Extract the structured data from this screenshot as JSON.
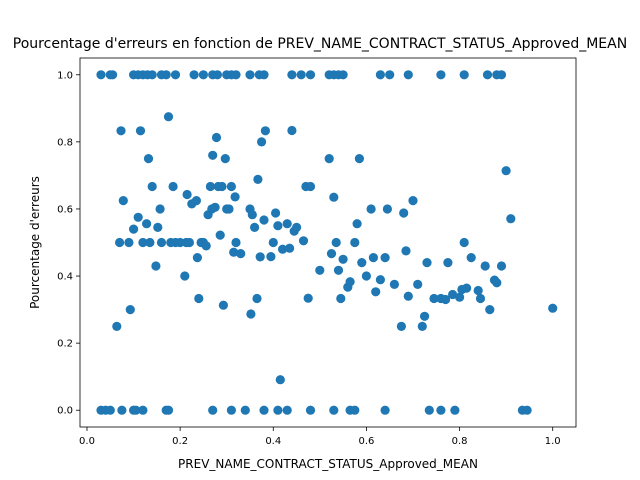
{
  "chart_data": {
    "type": "scatter",
    "title": "Pourcentage d'erreurs en fonction de PREV_NAME_CONTRACT_STATUS_Approved_MEAN",
    "xlabel": "PREV_NAME_CONTRACT_STATUS_Approved_MEAN",
    "ylabel": "Pourcentage d'erreurs",
    "xlim": [
      -0.015,
      1.05
    ],
    "ylim": [
      -0.05,
      1.05
    ],
    "xticks": [
      0.0,
      0.2,
      0.4,
      0.6,
      0.8,
      1.0
    ],
    "xtick_labels": [
      "0.0",
      "0.2",
      "0.4",
      "0.6",
      "0.8",
      "1.0"
    ],
    "yticks": [
      0.0,
      0.2,
      0.4,
      0.6,
      0.8,
      1.0
    ],
    "ytick_labels": [
      "0.0",
      "0.2",
      "0.4",
      "0.6",
      "0.8",
      "1.0"
    ],
    "grid": false,
    "marker_color": "#1f77b4",
    "series": [
      {
        "name": "points",
        "points": [
          [
            0.03,
            1.0
          ],
          [
            0.05,
            1.0
          ],
          [
            0.055,
            1.0
          ],
          [
            0.1,
            1.0
          ],
          [
            0.11,
            1.0
          ],
          [
            0.12,
            1.0
          ],
          [
            0.13,
            1.0
          ],
          [
            0.14,
            1.0
          ],
          [
            0.16,
            1.0
          ],
          [
            0.17,
            1.0
          ],
          [
            0.19,
            1.0
          ],
          [
            0.23,
            1.0
          ],
          [
            0.25,
            1.0
          ],
          [
            0.27,
            1.0
          ],
          [
            0.28,
            1.0
          ],
          [
            0.3,
            1.0
          ],
          [
            0.31,
            1.0
          ],
          [
            0.32,
            1.0
          ],
          [
            0.35,
            1.0
          ],
          [
            0.37,
            1.0
          ],
          [
            0.38,
            1.0
          ],
          [
            0.44,
            1.0
          ],
          [
            0.46,
            1.0
          ],
          [
            0.48,
            1.0
          ],
          [
            0.52,
            1.0
          ],
          [
            0.53,
            1.0
          ],
          [
            0.54,
            1.0
          ],
          [
            0.55,
            1.0
          ],
          [
            0.63,
            1.0
          ],
          [
            0.65,
            1.0
          ],
          [
            0.69,
            1.0
          ],
          [
            0.76,
            1.0
          ],
          [
            0.81,
            1.0
          ],
          [
            0.86,
            1.0
          ],
          [
            0.88,
            1.0
          ],
          [
            0.89,
            1.0
          ],
          [
            0.03,
            0.0
          ],
          [
            0.04,
            0.0
          ],
          [
            0.05,
            0.0
          ],
          [
            0.075,
            0.0
          ],
          [
            0.1,
            0.0
          ],
          [
            0.105,
            0.0
          ],
          [
            0.12,
            0.0
          ],
          [
            0.17,
            0.0
          ],
          [
            0.175,
            0.0
          ],
          [
            0.27,
            0.0
          ],
          [
            0.31,
            0.0
          ],
          [
            0.34,
            0.0
          ],
          [
            0.38,
            0.0
          ],
          [
            0.41,
            0.0
          ],
          [
            0.43,
            0.0
          ],
          [
            0.48,
            0.0
          ],
          [
            0.53,
            0.0
          ],
          [
            0.565,
            0.0
          ],
          [
            0.575,
            0.0
          ],
          [
            0.64,
            0.0
          ],
          [
            0.735,
            0.0
          ],
          [
            0.76,
            0.0
          ],
          [
            0.79,
            0.0
          ],
          [
            0.935,
            0.0
          ],
          [
            0.945,
            0.0
          ],
          [
            0.064,
            0.25
          ],
          [
            0.07,
            0.5
          ],
          [
            0.073,
            0.833
          ],
          [
            0.078,
            0.625
          ],
          [
            0.09,
            0.5
          ],
          [
            0.093,
            0.3
          ],
          [
            0.1,
            0.54
          ],
          [
            0.11,
            0.575
          ],
          [
            0.115,
            0.833
          ],
          [
            0.12,
            0.5
          ],
          [
            0.128,
            0.556
          ],
          [
            0.132,
            0.75
          ],
          [
            0.135,
            0.5
          ],
          [
            0.14,
            0.667
          ],
          [
            0.148,
            0.43
          ],
          [
            0.152,
            0.545
          ],
          [
            0.157,
            0.6
          ],
          [
            0.16,
            0.5
          ],
          [
            0.175,
            0.875
          ],
          [
            0.18,
            0.5
          ],
          [
            0.185,
            0.667
          ],
          [
            0.19,
            0.5
          ],
          [
            0.2,
            0.5
          ],
          [
            0.21,
            0.4
          ],
          [
            0.213,
            0.5
          ],
          [
            0.215,
            0.643
          ],
          [
            0.22,
            0.5
          ],
          [
            0.225,
            0.615
          ],
          [
            0.235,
            0.625
          ],
          [
            0.237,
            0.455
          ],
          [
            0.24,
            0.333
          ],
          [
            0.245,
            0.5
          ],
          [
            0.25,
            0.5
          ],
          [
            0.256,
            0.49
          ],
          [
            0.26,
            0.583
          ],
          [
            0.265,
            0.667
          ],
          [
            0.268,
            0.6
          ],
          [
            0.27,
            0.76
          ],
          [
            0.275,
            0.605
          ],
          [
            0.278,
            0.813
          ],
          [
            0.282,
            0.667
          ],
          [
            0.286,
            0.522
          ],
          [
            0.29,
            0.667
          ],
          [
            0.293,
            0.313
          ],
          [
            0.297,
            0.75
          ],
          [
            0.3,
            0.6
          ],
          [
            0.305,
            0.6
          ],
          [
            0.31,
            0.667
          ],
          [
            0.315,
            0.471
          ],
          [
            0.318,
            0.636
          ],
          [
            0.32,
            0.5
          ],
          [
            0.33,
            0.467
          ],
          [
            0.35,
            0.6
          ],
          [
            0.352,
            0.287
          ],
          [
            0.355,
            0.583
          ],
          [
            0.36,
            0.545
          ],
          [
            0.365,
            0.333
          ],
          [
            0.367,
            0.688
          ],
          [
            0.372,
            0.457
          ],
          [
            0.375,
            0.8
          ],
          [
            0.38,
            0.567
          ],
          [
            0.383,
            0.833
          ],
          [
            0.395,
            0.458
          ],
          [
            0.4,
            0.5
          ],
          [
            0.405,
            0.588
          ],
          [
            0.41,
            0.55
          ],
          [
            0.415,
            0.091
          ],
          [
            0.42,
            0.48
          ],
          [
            0.43,
            0.556
          ],
          [
            0.435,
            0.483
          ],
          [
            0.44,
            0.834
          ],
          [
            0.445,
            0.534
          ],
          [
            0.45,
            0.545
          ],
          [
            0.465,
            0.505
          ],
          [
            0.47,
            0.667
          ],
          [
            0.475,
            0.334
          ],
          [
            0.48,
            0.667
          ],
          [
            0.5,
            0.417
          ],
          [
            0.52,
            0.75
          ],
          [
            0.525,
            0.467
          ],
          [
            0.53,
            0.635
          ],
          [
            0.535,
            0.5
          ],
          [
            0.54,
            0.417
          ],
          [
            0.545,
            0.333
          ],
          [
            0.55,
            0.45
          ],
          [
            0.56,
            0.367
          ],
          [
            0.565,
            0.383
          ],
          [
            0.575,
            0.5
          ],
          [
            0.58,
            0.556
          ],
          [
            0.585,
            0.75
          ],
          [
            0.59,
            0.44
          ],
          [
            0.6,
            0.4
          ],
          [
            0.61,
            0.6
          ],
          [
            0.615,
            0.455
          ],
          [
            0.62,
            0.353
          ],
          [
            0.63,
            0.389
          ],
          [
            0.64,
            0.455
          ],
          [
            0.645,
            0.6
          ],
          [
            0.66,
            0.375
          ],
          [
            0.675,
            0.25
          ],
          [
            0.68,
            0.588
          ],
          [
            0.685,
            0.475
          ],
          [
            0.69,
            0.34
          ],
          [
            0.7,
            0.625
          ],
          [
            0.71,
            0.375
          ],
          [
            0.72,
            0.25
          ],
          [
            0.725,
            0.28
          ],
          [
            0.73,
            0.44
          ],
          [
            0.745,
            0.333
          ],
          [
            0.76,
            0.333
          ],
          [
            0.77,
            0.33
          ],
          [
            0.775,
            0.44
          ],
          [
            0.785,
            0.345
          ],
          [
            0.8,
            0.337
          ],
          [
            0.805,
            0.36
          ],
          [
            0.81,
            0.5
          ],
          [
            0.815,
            0.364
          ],
          [
            0.825,
            0.455
          ],
          [
            0.84,
            0.357
          ],
          [
            0.845,
            0.333
          ],
          [
            0.855,
            0.43
          ],
          [
            0.865,
            0.3
          ],
          [
            0.875,
            0.388
          ],
          [
            0.88,
            0.38
          ],
          [
            0.89,
            0.43
          ],
          [
            0.9,
            0.714
          ],
          [
            0.91,
            0.571
          ],
          [
            1.0,
            0.304
          ]
        ]
      }
    ]
  }
}
